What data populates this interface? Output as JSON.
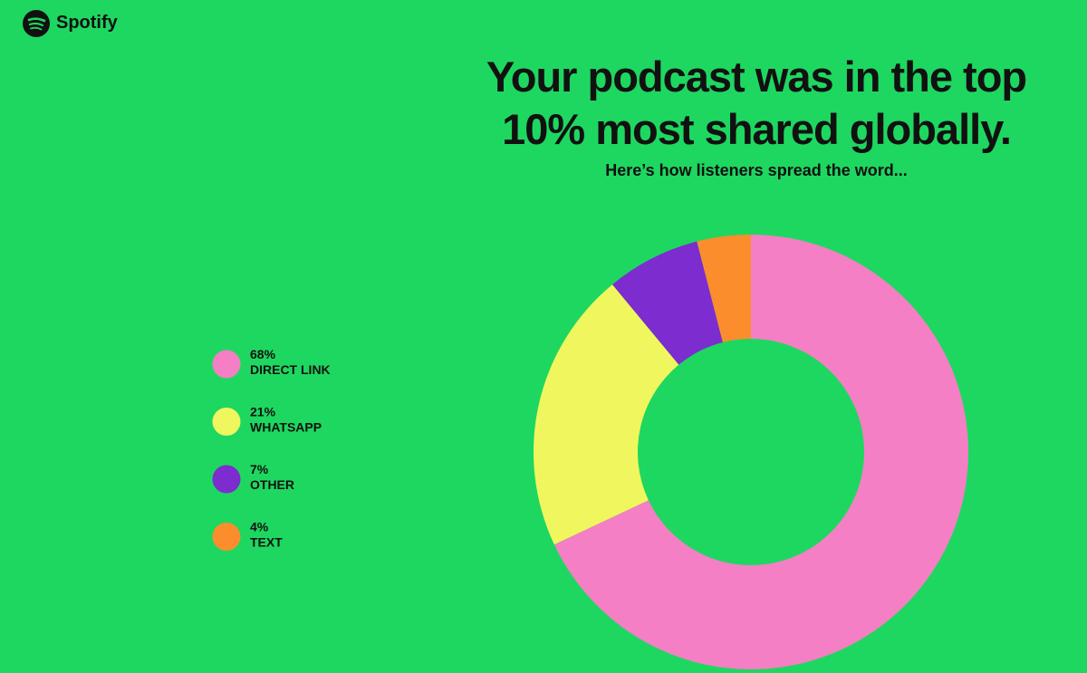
{
  "brand": "Spotify",
  "chart_data": {
    "type": "donut",
    "title": "Your podcast was in the top 10% most shared globally.",
    "subtitle": "Here’s how listeners spread the word...",
    "categories": [
      "DIRECT LINK",
      "WHATSAPP",
      "OTHER",
      "TEXT"
    ],
    "values": [
      68,
      21,
      7,
      4
    ],
    "value_labels": [
      "68%",
      "21%",
      "7%",
      "4%"
    ],
    "colors": [
      "#f47fc4",
      "#f0f75e",
      "#7c2ccf",
      "#fb8d2c"
    ]
  }
}
